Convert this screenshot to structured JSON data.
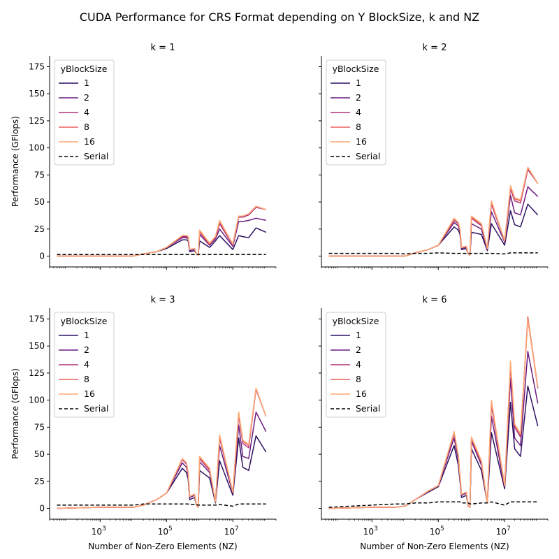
{
  "figure": {
    "title": "CUDA Performance for CRS Format depending on Y BlockSize, k and NZ",
    "xlabel": "Number of Non-Zero Elements (NZ)",
    "ylabel": "Performance (GFlops)"
  },
  "colors": {
    "1": "#2c1160",
    "2": "#6a1c81",
    "4": "#b1307a",
    "8": "#e8615c",
    "16": "#fea873",
    "Serial": "#000000"
  },
  "chart_data": [
    {
      "type": "line",
      "title": "k = 1",
      "xlabel": "",
      "ylabel": "Performance (GFlops)",
      "xscale": "log",
      "xlim": [
        30.0,
        200000000.0
      ],
      "ylim": [
        -10,
        185
      ],
      "yticks": [
        0,
        25,
        50,
        75,
        100,
        125,
        150,
        175
      ],
      "xticks": [
        "10^3",
        "10^5",
        "10^7"
      ],
      "legend": {
        "title": "yBlockSize",
        "loc": "upper left"
      },
      "x": [
        50,
        1000,
        5000,
        10000,
        20000,
        50000,
        100000,
        300000,
        400000,
        450000,
        500000,
        700000,
        800000,
        900000,
        1000000,
        2000000,
        3000000,
        4000000,
        10000000,
        15000000,
        20000000,
        30000000,
        50000000,
        100000000
      ],
      "series": [
        {
          "name": "1",
          "values": [
            0,
            0,
            0,
            0,
            2,
            4,
            7,
            15,
            15,
            14,
            4,
            5,
            2,
            1,
            14,
            8,
            14,
            19,
            6,
            19,
            18,
            17,
            26,
            22
          ]
        },
        {
          "name": "2",
          "values": [
            0,
            0,
            0,
            0,
            2,
            4,
            8,
            17,
            17,
            16,
            5,
            6,
            2,
            1,
            20,
            10,
            16,
            25,
            9,
            32,
            32,
            33,
            35,
            33
          ]
        },
        {
          "name": "4",
          "values": [
            0,
            0,
            0,
            0,
            2,
            4,
            8,
            18,
            18,
            17,
            6,
            7,
            2,
            1,
            22,
            11,
            17,
            30,
            10,
            36,
            36,
            38,
            45,
            43
          ]
        },
        {
          "name": "8",
          "values": [
            0,
            0,
            0,
            0,
            2,
            4,
            8,
            19,
            19,
            18,
            6,
            7,
            2,
            1,
            23,
            11,
            18,
            32,
            11,
            37,
            37,
            39,
            46,
            43
          ]
        },
        {
          "name": "16",
          "values": [
            0,
            0,
            0,
            0,
            2,
            4,
            8,
            19,
            19,
            18,
            6,
            7,
            2,
            1,
            24,
            12,
            18,
            33,
            11,
            37,
            37,
            39,
            46,
            43
          ]
        },
        {
          "name": "Serial",
          "style": "dashed",
          "values": [
            1.5,
            1.5,
            1.5,
            1.5,
            1.5,
            1.5,
            1.5,
            1.5,
            1.5,
            1.5,
            1.5,
            1.5,
            1.5,
            1.5,
            1.5,
            1.5,
            1.5,
            1.5,
            1.5,
            1.5,
            1.5,
            1.5,
            1.5,
            1.5
          ]
        }
      ]
    },
    {
      "type": "line",
      "title": "k = 2",
      "xlabel": "",
      "ylabel": "",
      "xscale": "log",
      "xlim": [
        30.0,
        200000000.0
      ],
      "ylim": [
        -10,
        185
      ],
      "yticks": [
        0,
        25,
        50,
        75,
        100,
        125,
        150,
        175
      ],
      "xticks": [
        "10^3",
        "10^5",
        "10^7"
      ],
      "legend": {
        "title": "yBlockSize",
        "loc": "upper left"
      },
      "x": [
        50,
        1000,
        5000,
        10000,
        20000,
        50000,
        100000,
        300000,
        400000,
        450000,
        500000,
        700000,
        800000,
        900000,
        1000000,
        2000000,
        3000000,
        4000000,
        10000000,
        15000000,
        20000000,
        30000000,
        50000000,
        100000000
      ],
      "series": [
        {
          "name": "1",
          "values": [
            0,
            0,
            0,
            0,
            3,
            6,
            10,
            27,
            24,
            20,
            6,
            7,
            2,
            1,
            22,
            20,
            5,
            30,
            10,
            42,
            29,
            27,
            48,
            38
          ]
        },
        {
          "name": "2",
          "values": [
            0,
            0,
            0,
            0,
            3,
            6,
            10,
            31,
            28,
            22,
            7,
            8,
            2,
            1,
            30,
            25,
            6,
            41,
            13,
            56,
            40,
            38,
            64,
            55
          ]
        },
        {
          "name": "4",
          "values": [
            0,
            0,
            0,
            0,
            3,
            6,
            10,
            33,
            30,
            24,
            8,
            9,
            2,
            1,
            35,
            28,
            7,
            48,
            14,
            62,
            51,
            49,
            80,
            67
          ]
        },
        {
          "name": "8",
          "values": [
            0,
            0,
            0,
            0,
            3,
            6,
            10,
            34,
            31,
            25,
            8,
            9,
            2,
            1,
            36,
            29,
            7,
            50,
            14,
            64,
            53,
            51,
            82,
            67
          ]
        },
        {
          "name": "16",
          "values": [
            0,
            0,
            0,
            0,
            3,
            6,
            10,
            35,
            31,
            25,
            8,
            9,
            2,
            1,
            37,
            30,
            7,
            51,
            14,
            65,
            54,
            52,
            82,
            67
          ]
        },
        {
          "name": "Serial",
          "style": "dashed",
          "values": [
            2.5,
            2.5,
            2.5,
            2.0,
            2.5,
            2.5,
            3,
            2.5,
            2.5,
            2.5,
            2.5,
            2.5,
            2.5,
            2.5,
            2.5,
            2.5,
            2.5,
            2.5,
            2.0,
            3,
            3,
            3,
            3,
            3
          ]
        }
      ]
    },
    {
      "type": "line",
      "title": "k = 3",
      "xlabel": "Number of Non-Zero Elements (NZ)",
      "ylabel": "Performance (GFlops)",
      "xscale": "log",
      "xlim": [
        30.0,
        200000000.0
      ],
      "ylim": [
        -10,
        185
      ],
      "yticks": [
        0,
        25,
        50,
        75,
        100,
        125,
        150,
        175
      ],
      "xticks": [
        "10^3",
        "10^5",
        "10^7"
      ],
      "legend": {
        "title": "yBlockSize",
        "loc": "upper left"
      },
      "x": [
        50,
        1000,
        5000,
        10000,
        20000,
        50000,
        100000,
        300000,
        400000,
        450000,
        500000,
        700000,
        800000,
        900000,
        1000000,
        2000000,
        3000000,
        4000000,
        10000000,
        15000000,
        20000000,
        30000000,
        50000000,
        100000000
      ],
      "series": [
        {
          "name": "1",
          "values": [
            0,
            1,
            1,
            1,
            3,
            8,
            14,
            37,
            33,
            27,
            8,
            10,
            3,
            1,
            35,
            28,
            5,
            44,
            12,
            65,
            38,
            35,
            67,
            52
          ]
        },
        {
          "name": "2",
          "values": [
            0,
            1,
            1,
            1,
            3,
            8,
            14,
            42,
            38,
            30,
            10,
            12,
            3,
            1,
            43,
            33,
            6,
            58,
            14,
            77,
            48,
            46,
            89,
            71
          ]
        },
        {
          "name": "4",
          "values": [
            0,
            1,
            1,
            1,
            3,
            8,
            14,
            45,
            41,
            32,
            11,
            13,
            3,
            1,
            46,
            35,
            6,
            65,
            15,
            86,
            60,
            56,
            110,
            85
          ]
        },
        {
          "name": "8",
          "values": [
            0,
            1,
            1,
            1,
            3,
            8,
            14,
            46,
            42,
            33,
            11,
            13,
            3,
            1,
            47,
            36,
            6,
            67,
            15,
            88,
            62,
            58,
            111,
            85
          ]
        },
        {
          "name": "16",
          "values": [
            0,
            1,
            1,
            1,
            3,
            8,
            14,
            46,
            42,
            33,
            11,
            13,
            3,
            1,
            48,
            37,
            6,
            68,
            15,
            89,
            63,
            59,
            111,
            85
          ]
        },
        {
          "name": "Serial",
          "style": "dashed",
          "values": [
            3,
            3,
            3,
            3,
            4,
            4,
            4,
            4,
            4,
            4,
            3.5,
            3.5,
            3.5,
            3,
            3,
            3,
            3,
            3.5,
            2,
            4,
            4,
            4,
            4,
            4
          ]
        }
      ]
    },
    {
      "type": "line",
      "title": "k = 6",
      "xlabel": "Number of Non-Zero Elements (NZ)",
      "ylabel": "",
      "xscale": "log",
      "xlim": [
        30.0,
        200000000.0
      ],
      "ylim": [
        -10,
        185
      ],
      "yticks": [
        0,
        25,
        50,
        75,
        100,
        125,
        150,
        175
      ],
      "xticks": [
        "10^3",
        "10^5",
        "10^7"
      ],
      "legend": {
        "title": "yBlockSize",
        "loc": "upper left"
      },
      "x": [
        50,
        1000,
        5000,
        10000,
        20000,
        50000,
        100000,
        300000,
        400000,
        450000,
        500000,
        700000,
        800000,
        900000,
        1000000,
        2000000,
        3000000,
        4000000,
        10000000,
        15000000,
        20000000,
        30000000,
        50000000,
        100000000
      ],
      "series": [
        {
          "name": "1",
          "values": [
            0,
            1,
            1,
            2,
            8,
            15,
            20,
            58,
            40,
            25,
            10,
            12,
            2,
            1,
            55,
            35,
            5,
            70,
            18,
            98,
            55,
            48,
            113,
            76
          ]
        },
        {
          "name": "2",
          "values": [
            0,
            1,
            1,
            2,
            8,
            16,
            21,
            65,
            45,
            28,
            12,
            14,
            2,
            1,
            62,
            40,
            5,
            85,
            20,
            120,
            65,
            58,
            145,
            97
          ]
        },
        {
          "name": "4",
          "values": [
            0,
            1,
            1,
            2,
            8,
            16,
            21,
            69,
            48,
            29,
            13,
            15,
            2,
            1,
            64,
            42,
            5,
            95,
            21,
            131,
            75,
            66,
            175,
            111
          ]
        },
        {
          "name": "8",
          "values": [
            0,
            1,
            1,
            2,
            8,
            16,
            21,
            70,
            49,
            30,
            13,
            15,
            2,
            1,
            65,
            43,
            5,
            98,
            21,
            134,
            77,
            68,
            177,
            112
          ]
        },
        {
          "name": "16",
          "values": [
            0,
            1,
            1,
            2,
            8,
            16,
            21,
            71,
            49,
            30,
            13,
            15,
            2,
            1,
            66,
            44,
            5,
            100,
            21,
            136,
            78,
            69,
            174,
            112
          ]
        },
        {
          "name": "Serial",
          "style": "dashed",
          "values": [
            1,
            3,
            4,
            4,
            5,
            5,
            6,
            6,
            6,
            6,
            5,
            5,
            5,
            4,
            4,
            5,
            5,
            6,
            3,
            6,
            6,
            6,
            6,
            6
          ]
        }
      ]
    }
  ]
}
